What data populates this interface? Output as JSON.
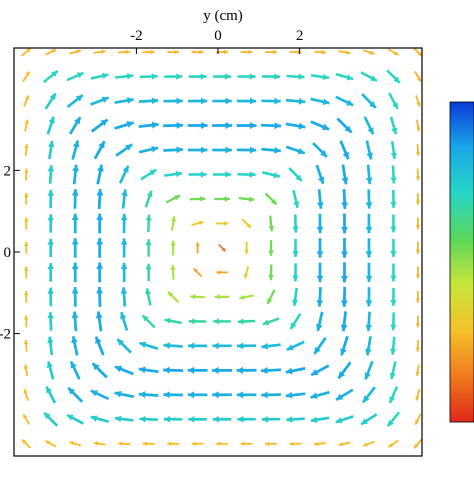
{
  "chart_data": {
    "type": "quiver",
    "title": "",
    "xlabel": "y (cm)",
    "ylabel": "",
    "xlim": [
      -5,
      5
    ],
    "ylim": [
      -5,
      5
    ],
    "x_ticks": [
      -2,
      0,
      2
    ],
    "y_ticks": [
      2,
      0,
      -2
    ],
    "x_tick_labels": [
      "-2",
      "0",
      "2"
    ],
    "y_tick_labels": [
      "2",
      "0",
      "-2"
    ],
    "grid": false,
    "colorbar": {
      "placement": "right",
      "colors": [
        "#0b3bd9",
        "#1aa8e8",
        "#25d6c4",
        "#5bd75a",
        "#c8e63a",
        "#f5c12a",
        "#f07a1c",
        "#e0281a"
      ]
    },
    "flow": {
      "pattern": "clockwise-vortex",
      "center": [
        0,
        0
      ],
      "grid_spacing": 0.6,
      "speed_max_at_edges": true
    }
  }
}
